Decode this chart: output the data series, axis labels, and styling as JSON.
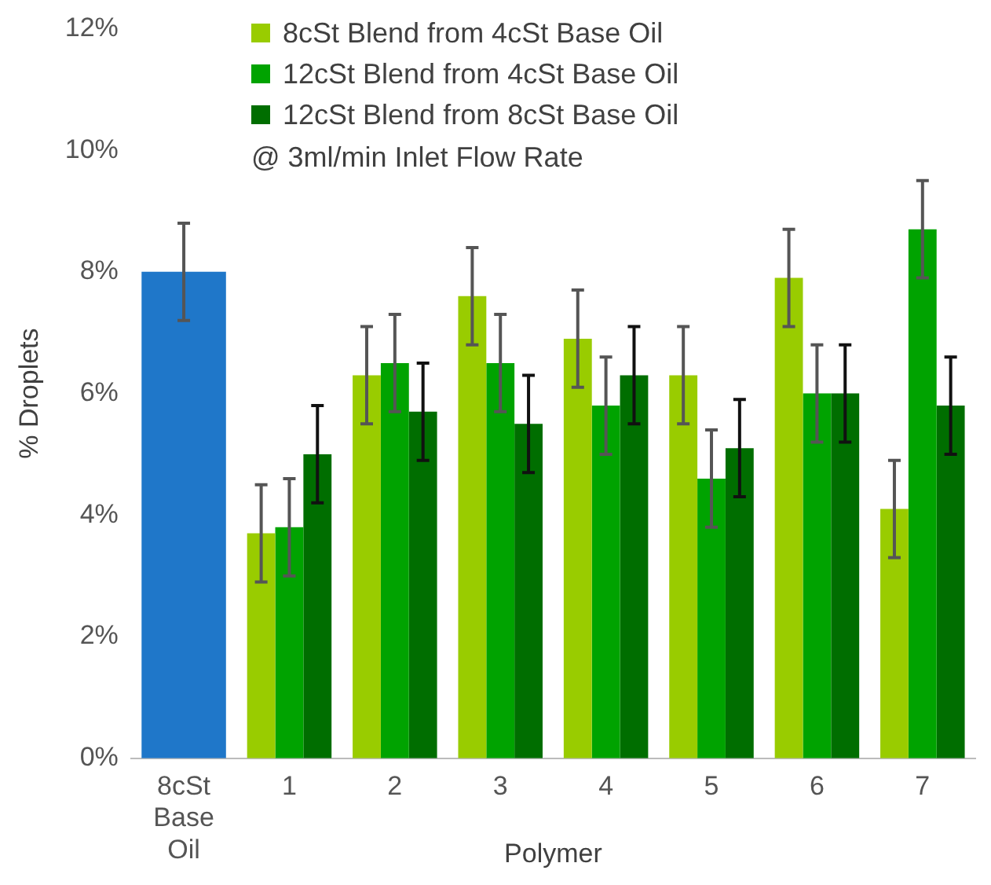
{
  "chart_data": {
    "type": "bar",
    "xlabel": "Polymer",
    "ylabel": "% Droplets",
    "categories": [
      "8cSt Base Oil",
      "1",
      "2",
      "3",
      "4",
      "5",
      "6",
      "7"
    ],
    "series": [
      {
        "color": "#1f77c9",
        "values": [
          8.0,
          null,
          null,
          null,
          null,
          null,
          null,
          null
        ],
        "errors": [
          0.8,
          null,
          null,
          null,
          null,
          null,
          null,
          null
        ]
      },
      {
        "name": "8cSt Blend from 4cSt Base Oil",
        "color": "#99cc00",
        "values": [
          null,
          3.7,
          6.3,
          7.6,
          6.9,
          6.3,
          7.9,
          4.1
        ],
        "errors": [
          null,
          0.8,
          0.8,
          0.8,
          0.8,
          0.8,
          0.8,
          0.8
        ]
      },
      {
        "name": "12cSt Blend from 4cSt Base Oil",
        "color": "#00a300",
        "values": [
          null,
          3.8,
          6.5,
          6.5,
          5.8,
          4.6,
          6.0,
          8.7
        ],
        "errors": [
          null,
          0.8,
          0.8,
          0.8,
          0.8,
          0.8,
          0.8,
          0.8
        ]
      },
      {
        "name": "12cSt Blend from 8cSt Base Oil",
        "color": "#006e00",
        "values": [
          null,
          5.0,
          5.7,
          5.5,
          6.3,
          5.1,
          6.0,
          5.8
        ],
        "errors": [
          null,
          0.8,
          0.8,
          0.8,
          0.8,
          0.8,
          0.8,
          0.8
        ]
      }
    ],
    "ylim": [
      0,
      12
    ],
    "yticks": [
      {
        "value": 0,
        "label": "0%"
      },
      {
        "value": 2,
        "label": "2%"
      },
      {
        "value": 4,
        "label": "4%"
      },
      {
        "value": 6,
        "label": "6%"
      },
      {
        "value": 8,
        "label": "8%"
      },
      {
        "value": 10,
        "label": "10%"
      },
      {
        "value": 12,
        "label": "12%"
      }
    ],
    "grid": false,
    "legend": "top left",
    "annotations": [
      "@ 3ml/min Inlet Flow Rate"
    ]
  }
}
